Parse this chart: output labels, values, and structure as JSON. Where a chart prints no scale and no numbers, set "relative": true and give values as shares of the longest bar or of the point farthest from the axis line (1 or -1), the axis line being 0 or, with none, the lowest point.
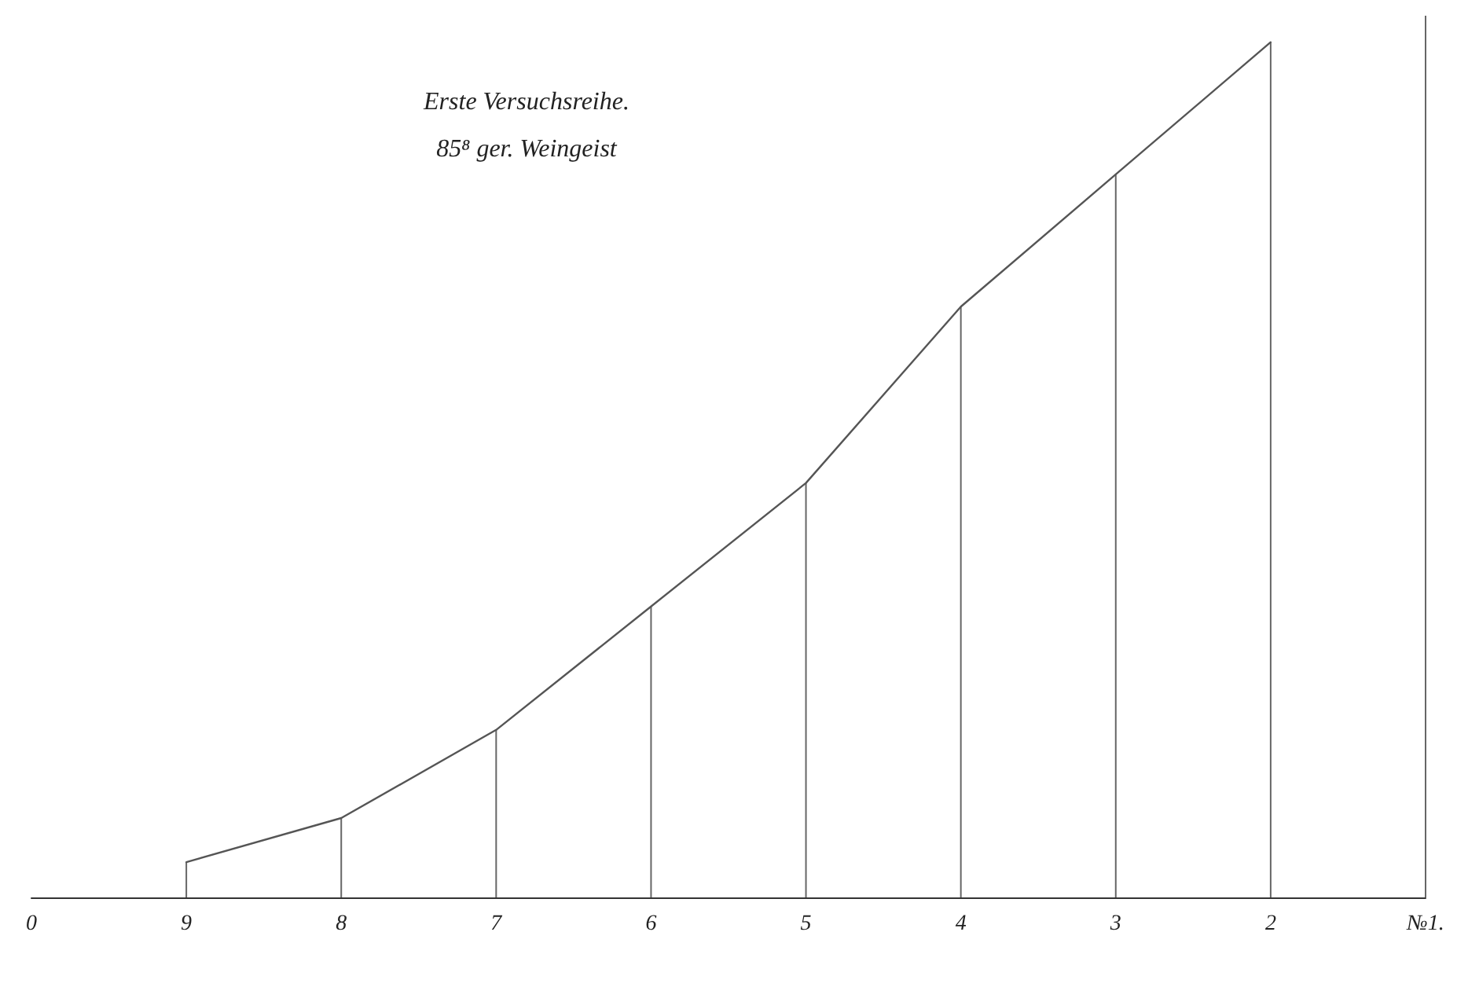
{
  "chart_data": {
    "type": "bar",
    "title": "Erste Versuchsreihe.",
    "subtitle": "85⁸ ger. Weingeist",
    "relative": true,
    "categories": [
      "0",
      "9",
      "8",
      "7",
      "6",
      "5",
      "4",
      "3",
      "2",
      "№1."
    ],
    "series": [
      {
        "color": "#666666",
        "values": [
          null,
          0.04,
          0.09,
          0.19,
          0.33,
          0.47,
          0.67,
          0.82,
          0.97,
          1
        ]
      },
      {
        "type": "line",
        "color": "#555555",
        "values": [
          null,
          0.04,
          0.09,
          0.19,
          0.33,
          0.47,
          0.67,
          0.82,
          0.97,
          null
        ]
      }
    ],
    "grid": false,
    "marker": "none",
    "line_style": "solid"
  }
}
